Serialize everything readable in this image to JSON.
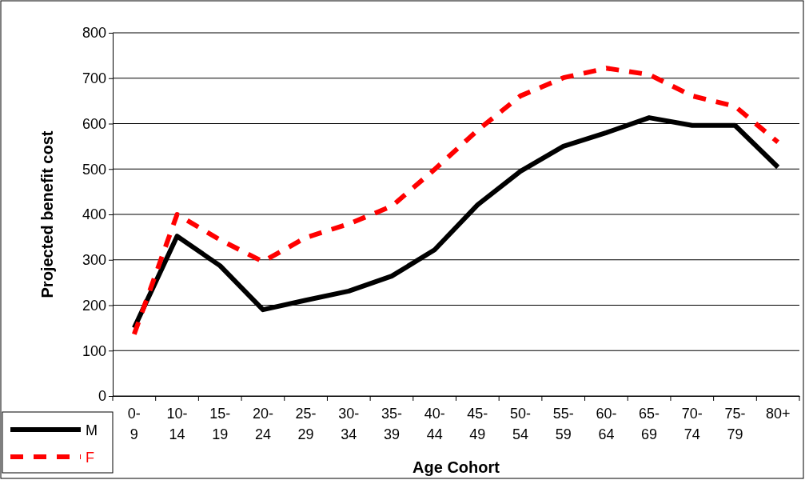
{
  "chart_data": {
    "type": "line",
    "xlabel": "Age Cohort",
    "ylabel": "Projected benefit cost",
    "categories": [
      "0-9",
      "10-14",
      "15-19",
      "20-24",
      "25-29",
      "30-34",
      "35-39",
      "40-44",
      "45-49",
      "50-54",
      "55-59",
      "60-64",
      "65-69",
      "70-74",
      "75-79",
      "80+"
    ],
    "series": [
      {
        "name": "M",
        "color": "#000000",
        "line_style": "solid",
        "values": [
          150,
          352,
          287,
          190,
          211,
          231,
          264,
          322,
          421,
          495,
          550,
          580,
          613,
          596,
          596,
          504
        ]
      },
      {
        "name": "F",
        "color": "#ff0000",
        "line_style": "dashed",
        "values": [
          136,
          400,
          344,
          296,
          349,
          379,
          418,
          499,
          585,
          661,
          701,
          722,
          708,
          661,
          638,
          559
        ]
      }
    ],
    "ylim": [
      0,
      800
    ],
    "yticks": [
      0,
      100,
      200,
      300,
      400,
      500,
      600,
      700,
      800
    ],
    "grid": "y",
    "legend": "bottom left",
    "marker": "none"
  }
}
